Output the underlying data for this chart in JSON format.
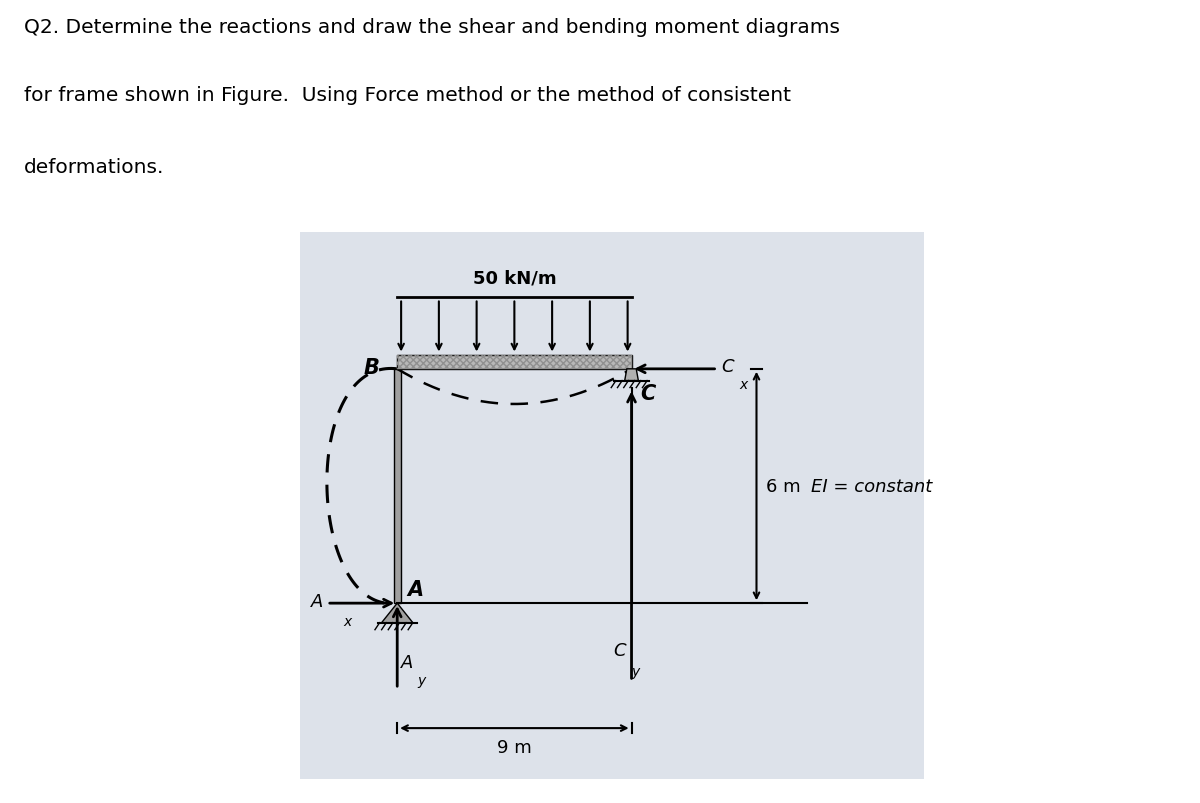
{
  "title_line1": "Q2. Determine the reactions and draw the shear and bending moment diagrams",
  "title_line2": "for frame shown in Figure.  Using Force method or the method of consistent",
  "title_line3": "deformations.",
  "bg_color": "#dde2ea",
  "load_label": "50 kN/m",
  "dim_label_horiz": "9 m",
  "dim_label_vert": "6 m",
  "ei_label": "EI = constant",
  "label_B": "B",
  "label_A": "A",
  "label_C": "C",
  "react_Ax": "A",
  "react_Ax_sub": "x",
  "react_Ay": "A",
  "react_Ay_sub": "y",
  "react_Cx": "C",
  "react_Cx_sub": "x",
  "react_Cy": "C",
  "react_Cy_sub": "y"
}
